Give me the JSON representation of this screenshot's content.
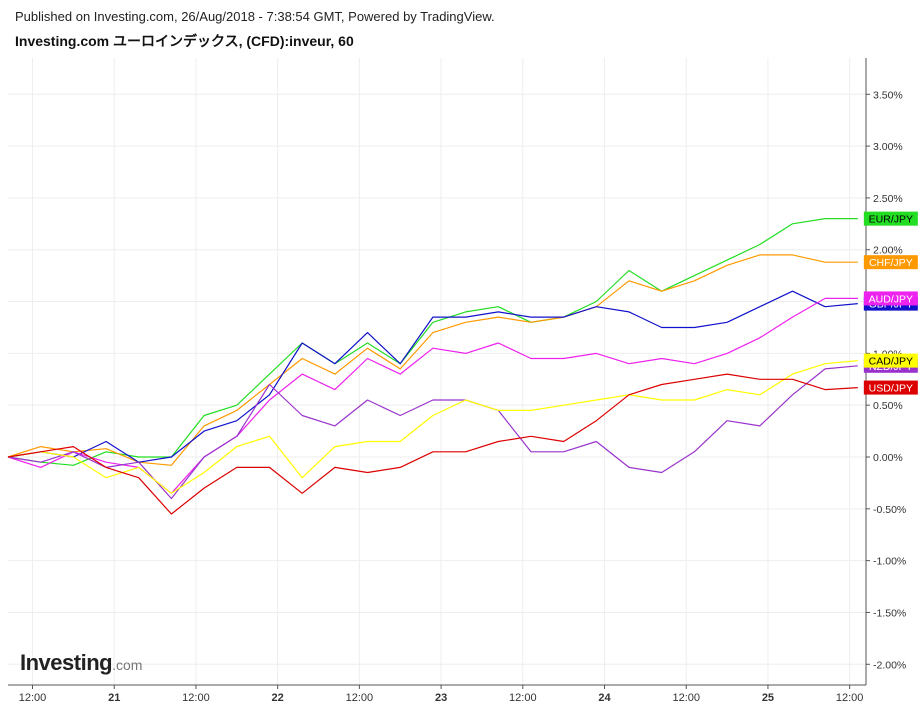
{
  "header": {
    "published": "Published on Investing.com, 26/Aug/2018 - 7:38:54 GMT, Powered by TradingView.",
    "title": "Investing.com ユーロインデックス, (CFD):inveur, 60"
  },
  "logo": {
    "main": "Investing",
    "suffix": ".com"
  },
  "chart_data": {
    "type": "line",
    "title": "Investing.com ユーロインデックス, (CFD):inveur, 60",
    "xlabel": "",
    "ylabel": "",
    "x_ticks": [
      "12:00",
      "21",
      "12:00",
      "22",
      "12:00",
      "23",
      "12:00",
      "24",
      "12:00",
      "25",
      "12:00"
    ],
    "xlim": [
      0,
      105
    ],
    "y_ticks": [
      3.5,
      3.0,
      2.5,
      2.0,
      1.5,
      1.0,
      0.5,
      0.0,
      -0.5,
      -1.0,
      -1.5,
      -2.0
    ],
    "y_tick_labels": [
      "3.50%",
      "3.00%",
      "2.50%",
      "2.00%",
      "1.50%",
      "1.00%",
      "0.50%",
      "0.00%",
      "-0.50%",
      "-1.00%",
      "-1.50%",
      "-2.00%"
    ],
    "ylim": [
      -2.2,
      3.85
    ],
    "grid": true,
    "legend": "right",
    "series": [
      {
        "name": "EUR/JPY",
        "color": "#22dd22",
        "label_bg": "#22dd22",
        "label_color": "#000000",
        "x": [
          0,
          4,
          8,
          12,
          16,
          20,
          24,
          28,
          32,
          36,
          40,
          44,
          48,
          52,
          56,
          60,
          64,
          68,
          72,
          76,
          80,
          84,
          88,
          92,
          96,
          100,
          104
        ],
        "y": [
          0.0,
          -0.05,
          -0.08,
          0.05,
          0.0,
          0.0,
          0.4,
          0.5,
          0.8,
          1.1,
          0.9,
          1.1,
          0.9,
          1.3,
          1.4,
          1.45,
          1.3,
          1.35,
          1.5,
          1.8,
          1.6,
          1.75,
          1.9,
          2.05,
          2.25,
          2.3,
          2.3
        ]
      },
      {
        "name": "CHF/JPY",
        "color": "#ff9900",
        "label_bg": "#ff9900",
        "label_color": "#ffffff",
        "x": [
          0,
          4,
          8,
          12,
          16,
          20,
          24,
          28,
          32,
          36,
          40,
          44,
          48,
          52,
          56,
          60,
          64,
          68,
          72,
          76,
          80,
          84,
          88,
          92,
          96,
          100,
          104
        ],
        "y": [
          0.0,
          0.1,
          0.05,
          0.08,
          -0.05,
          -0.08,
          0.3,
          0.45,
          0.7,
          0.95,
          0.8,
          1.05,
          0.85,
          1.2,
          1.3,
          1.35,
          1.3,
          1.35,
          1.45,
          1.7,
          1.6,
          1.7,
          1.85,
          1.95,
          1.95,
          1.88,
          1.88
        ]
      },
      {
        "name": "GBP/JPY",
        "color": "#1111cc",
        "label_bg": "#1111cc",
        "label_color": "#ffffff",
        "x": [
          0,
          4,
          8,
          12,
          16,
          20,
          24,
          28,
          32,
          36,
          40,
          44,
          48,
          52,
          56,
          60,
          64,
          68,
          72,
          76,
          80,
          84,
          88,
          92,
          96,
          100,
          104
        ],
        "y": [
          0.0,
          0.05,
          0.0,
          0.15,
          -0.05,
          0.0,
          0.25,
          0.35,
          0.6,
          1.1,
          0.9,
          1.2,
          0.9,
          1.35,
          1.35,
          1.4,
          1.35,
          1.35,
          1.45,
          1.4,
          1.25,
          1.25,
          1.3,
          1.45,
          1.6,
          1.45,
          1.48
        ]
      },
      {
        "name": "AUD/JPY",
        "color": "#ee22ee",
        "label_bg": "#ee22ee",
        "label_color": "#ffffff",
        "x": [
          0,
          4,
          8,
          12,
          16,
          20,
          24,
          28,
          32,
          36,
          40,
          44,
          48,
          52,
          56,
          60,
          64,
          68,
          72,
          76,
          80,
          84,
          88,
          92,
          96,
          100,
          104
        ],
        "y": [
          0.0,
          -0.1,
          0.05,
          -0.05,
          -0.1,
          -0.35,
          0.0,
          0.2,
          0.55,
          0.8,
          0.65,
          0.95,
          0.8,
          1.05,
          1.0,
          1.1,
          0.95,
          0.95,
          1.0,
          0.9,
          0.95,
          0.9,
          1.0,
          1.15,
          1.35,
          1.53,
          1.53
        ]
      },
      {
        "name": "NZD/JPY",
        "color": "#9933cc",
        "label_bg": "#9933cc",
        "label_color": "#ffffff",
        "x": [
          0,
          4,
          8,
          12,
          16,
          20,
          24,
          28,
          32,
          36,
          40,
          44,
          48,
          52,
          56,
          60,
          64,
          68,
          72,
          76,
          80,
          84,
          88,
          92,
          96,
          100,
          104
        ],
        "y": [
          0.0,
          -0.05,
          0.05,
          -0.1,
          -0.05,
          -0.4,
          0.0,
          0.2,
          0.7,
          0.4,
          0.3,
          0.55,
          0.4,
          0.55,
          0.55,
          0.45,
          0.05,
          0.05,
          0.15,
          -0.1,
          -0.15,
          0.05,
          0.35,
          0.3,
          0.6,
          0.85,
          0.88
        ]
      },
      {
        "name": "CAD/JPY",
        "color": "#ffff00",
        "label_bg": "#ffff00",
        "label_color": "#000000",
        "x": [
          0,
          4,
          8,
          12,
          16,
          20,
          24,
          28,
          32,
          36,
          40,
          44,
          48,
          52,
          56,
          60,
          64,
          68,
          72,
          76,
          80,
          84,
          88,
          92,
          96,
          100,
          104
        ],
        "y": [
          0.0,
          0.05,
          0.0,
          -0.2,
          -0.1,
          -0.35,
          -0.15,
          0.1,
          0.2,
          -0.2,
          0.1,
          0.15,
          0.15,
          0.4,
          0.55,
          0.45,
          0.45,
          0.5,
          0.55,
          0.6,
          0.55,
          0.55,
          0.65,
          0.6,
          0.8,
          0.9,
          0.93
        ]
      },
      {
        "name": "USD/JPY",
        "color": "#dd0000",
        "label_bg": "#dd0000",
        "label_color": "#ffffff",
        "x": [
          0,
          4,
          8,
          12,
          16,
          20,
          24,
          28,
          32,
          36,
          40,
          44,
          48,
          52,
          56,
          60,
          64,
          68,
          72,
          76,
          80,
          84,
          88,
          92,
          96,
          100,
          104
        ],
        "y": [
          0.0,
          0.05,
          0.1,
          -0.1,
          -0.2,
          -0.55,
          -0.3,
          -0.1,
          -0.1,
          -0.35,
          -0.1,
          -0.15,
          -0.1,
          0.05,
          0.05,
          0.15,
          0.2,
          0.15,
          0.35,
          0.6,
          0.7,
          0.75,
          0.8,
          0.75,
          0.75,
          0.65,
          0.67
        ]
      }
    ]
  }
}
